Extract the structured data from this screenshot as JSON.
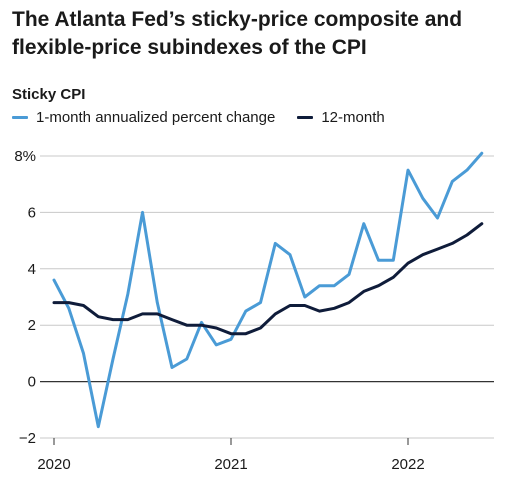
{
  "header": {
    "title": "The Atlanta Fed’s sticky-price composite and flexible-price subindexes of the CPI",
    "subtitle": "Sticky CPI"
  },
  "chart_data": {
    "type": "line",
    "title": "The Atlanta Fed’s sticky-price composite and flexible-price subindexes of the CPI",
    "subtitle": "Sticky CPI",
    "xlabel": "",
    "ylabel": "",
    "ylim": [
      -2,
      8
    ],
    "yticks": [
      {
        "value": 8,
        "label": "8%"
      },
      {
        "value": 6,
        "label": "6"
      },
      {
        "value": 4,
        "label": "4"
      },
      {
        "value": 2,
        "label": "2"
      },
      {
        "value": 0,
        "label": "0"
      },
      {
        "value": -2,
        "label": "−2"
      }
    ],
    "xticks": [
      {
        "value": 0,
        "label": "2020"
      },
      {
        "value": 12,
        "label": "2021"
      },
      {
        "value": 24,
        "label": "2022"
      }
    ],
    "x_unit": "months since Jan 2020",
    "x": [
      0,
      1,
      2,
      3,
      4,
      5,
      6,
      7,
      8,
      9,
      10,
      11,
      12,
      13,
      14,
      15,
      16,
      17,
      18,
      19,
      20,
      21,
      22,
      23,
      24,
      25,
      26,
      27,
      28,
      29
    ],
    "grid": "horizontal",
    "legend_position": "top-left",
    "series": [
      {
        "name": "1-month annualized percent change",
        "color": "#4a9bd6",
        "values": [
          3.6,
          2.6,
          1.0,
          -1.6,
          0.8,
          3.1,
          6.0,
          2.8,
          0.5,
          0.8,
          2.1,
          1.3,
          1.5,
          2.5,
          2.8,
          4.9,
          4.5,
          3.0,
          3.4,
          3.4,
          3.8,
          5.6,
          4.3,
          4.3,
          7.5,
          6.5,
          5.8,
          7.1,
          7.5,
          8.1
        ]
      },
      {
        "name": "12-month",
        "color": "#0f1c3a",
        "values": [
          2.8,
          2.8,
          2.7,
          2.3,
          2.2,
          2.2,
          2.4,
          2.4,
          2.2,
          2.0,
          2.0,
          1.9,
          1.7,
          1.7,
          1.9,
          2.4,
          2.7,
          2.7,
          2.5,
          2.6,
          2.8,
          3.2,
          3.4,
          3.7,
          4.2,
          4.5,
          4.7,
          4.9,
          5.2,
          5.6
        ]
      }
    ]
  }
}
